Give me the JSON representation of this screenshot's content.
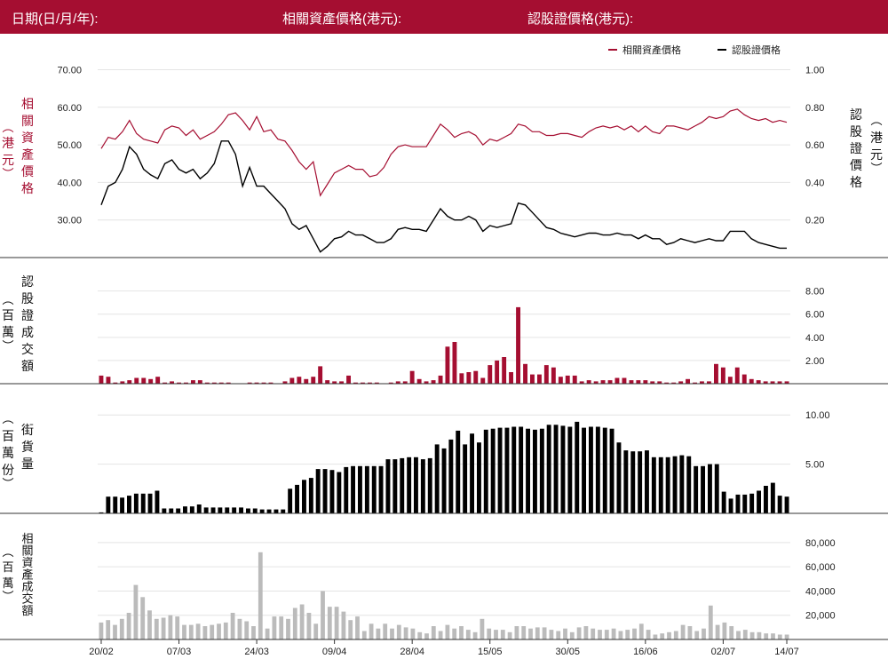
{
  "header": {
    "date_label": "日期(日/月/年):",
    "asset_price_label": "相關資產價格(港元):",
    "warrant_price_label": "認股證價格(港元):"
  },
  "colors": {
    "header_bg": "#a50e31",
    "asset": "#a50e31",
    "warrant": "#000000",
    "asset_turnover": "#bbbbbb",
    "grid": "#e4e4e4"
  },
  "chart_data": [
    {
      "type": "line",
      "legend": [
        "相關資產價格",
        "認股證價格"
      ],
      "legend_position": "top-right",
      "left_axis": {
        "label": "相關資產價格 (港元)",
        "ticks": [
          "30.00",
          "40.00",
          "50.00",
          "60.00",
          "70.00"
        ],
        "range": [
          20,
          72
        ]
      },
      "right_axis": {
        "label": "認股證價格 (港元)",
        "ticks": [
          "0.20",
          "0.40",
          "0.60",
          "0.80",
          "1.00"
        ],
        "range": [
          0,
          1.04
        ]
      },
      "grid": true,
      "series": [
        {
          "name": "相關資產價格",
          "axis": "left",
          "values": [
            49.0,
            52.0,
            51.5,
            53.5,
            56.5,
            53.0,
            51.5,
            51.0,
            50.5,
            54.0,
            55.0,
            54.5,
            52.5,
            54.0,
            51.5,
            52.5,
            53.5,
            55.5,
            58.0,
            58.5,
            56.5,
            54.0,
            57.5,
            53.5,
            54.0,
            51.5,
            51.0,
            48.5,
            45.5,
            43.5,
            45.5,
            36.5,
            39.5,
            42.5,
            43.5,
            44.5,
            43.5,
            43.5,
            41.5,
            42.0,
            44.0,
            47.5,
            49.5,
            50.0,
            49.5,
            49.5,
            49.5,
            52.5,
            55.5,
            54.0,
            52.0,
            53.0,
            53.5,
            52.5,
            50.0,
            51.5,
            51.0,
            52.0,
            53.0,
            55.5,
            55.0,
            53.5,
            53.5,
            52.5,
            52.5,
            53.0,
            53.0,
            52.5,
            52.0,
            53.5,
            54.5,
            55.0,
            54.5,
            55.0,
            54.0,
            55.0,
            53.5,
            55.0,
            53.5,
            53.0,
            55.0,
            55.0,
            54.5,
            54.0,
            55.0,
            56.0,
            57.5,
            57.0,
            57.5,
            59.0,
            59.5,
            58.0,
            57.0,
            56.5,
            57.0,
            56.0,
            56.5,
            56.0
          ]
        },
        {
          "name": "認股證價格",
          "axis": "right",
          "values": [
            0.28,
            0.38,
            0.4,
            0.47,
            0.59,
            0.55,
            0.47,
            0.44,
            0.42,
            0.5,
            0.52,
            0.47,
            0.45,
            0.47,
            0.42,
            0.45,
            0.5,
            0.62,
            0.62,
            0.55,
            0.38,
            0.48,
            0.38,
            0.38,
            0.34,
            0.3,
            0.26,
            0.18,
            0.15,
            0.17,
            0.1,
            0.03,
            0.06,
            0.1,
            0.11,
            0.14,
            0.12,
            0.12,
            0.1,
            0.08,
            0.08,
            0.1,
            0.15,
            0.16,
            0.15,
            0.15,
            0.14,
            0.2,
            0.26,
            0.22,
            0.2,
            0.2,
            0.22,
            0.2,
            0.14,
            0.17,
            0.16,
            0.17,
            0.18,
            0.29,
            0.28,
            0.24,
            0.2,
            0.16,
            0.15,
            0.13,
            0.12,
            0.11,
            0.12,
            0.13,
            0.13,
            0.12,
            0.12,
            0.13,
            0.12,
            0.12,
            0.1,
            0.12,
            0.1,
            0.1,
            0.07,
            0.08,
            0.1,
            0.09,
            0.08,
            0.09,
            0.1,
            0.09,
            0.09,
            0.14,
            0.14,
            0.14,
            0.1,
            0.08,
            0.07,
            0.06,
            0.05,
            0.05
          ]
        }
      ]
    },
    {
      "type": "bar",
      "ylabel": "認股證成交額 (百萬)",
      "ticks": [
        "2.00",
        "4.00",
        "6.00",
        "8.00"
      ],
      "range": [
        0,
        9.2
      ],
      "grid": true,
      "series": [
        {
          "name": "認股證成交額",
          "values": [
            0.7,
            0.6,
            0.1,
            0.2,
            0.3,
            0.5,
            0.5,
            0.4,
            0.6,
            0.1,
            0.2,
            0.1,
            0.1,
            0.3,
            0.3,
            0.1,
            0.1,
            0.1,
            0.1,
            0.0,
            0.0,
            0.1,
            0.1,
            0.1,
            0.1,
            0.0,
            0.2,
            0.5,
            0.6,
            0.4,
            0.6,
            1.5,
            0.3,
            0.2,
            0.2,
            0.7,
            0.1,
            0.1,
            0.1,
            0.1,
            0.0,
            0.1,
            0.2,
            0.2,
            1.1,
            0.4,
            0.2,
            0.3,
            0.7,
            3.2,
            3.6,
            0.9,
            1.0,
            1.1,
            0.5,
            1.6,
            2.0,
            2.3,
            1.0,
            6.6,
            1.7,
            0.8,
            0.8,
            1.6,
            1.4,
            0.6,
            0.7,
            0.7,
            0.2,
            0.3,
            0.2,
            0.3,
            0.3,
            0.5,
            0.5,
            0.3,
            0.3,
            0.3,
            0.2,
            0.2,
            0.1,
            0.1,
            0.2,
            0.4,
            0.1,
            0.2,
            0.2,
            1.7,
            1.4,
            0.6,
            1.4,
            0.8,
            0.4,
            0.3,
            0.2,
            0.2,
            0.2,
            0.2
          ]
        }
      ]
    },
    {
      "type": "bar",
      "ylabel": "街貨量 (百萬份)",
      "ticks": [
        "5.00",
        "10.00"
      ],
      "range": [
        0,
        11.1
      ],
      "grid": true,
      "series": [
        {
          "name": "街貨量",
          "values": [
            0.1,
            1.7,
            1.7,
            1.6,
            1.8,
            2.0,
            2.0,
            2.0,
            2.3,
            0.5,
            0.5,
            0.5,
            0.7,
            0.7,
            0.9,
            0.6,
            0.6,
            0.6,
            0.6,
            0.6,
            0.6,
            0.5,
            0.5,
            0.4,
            0.4,
            0.4,
            0.4,
            2.5,
            2.9,
            3.4,
            3.6,
            4.5,
            4.5,
            4.4,
            4.2,
            4.7,
            4.8,
            4.8,
            4.8,
            4.8,
            4.8,
            5.5,
            5.5,
            5.6,
            5.7,
            5.7,
            5.5,
            5.6,
            7.0,
            6.6,
            7.5,
            8.4,
            7.0,
            8.1,
            7.2,
            8.5,
            8.6,
            8.7,
            8.7,
            8.8,
            8.8,
            8.6,
            8.5,
            8.6,
            9.0,
            9.0,
            8.9,
            8.8,
            9.3,
            8.7,
            8.8,
            8.8,
            8.7,
            8.6,
            7.2,
            6.4,
            6.3,
            6.3,
            6.4,
            5.7,
            5.7,
            5.7,
            5.8,
            5.9,
            5.8,
            4.8,
            4.8,
            5.0,
            5.0,
            2.2,
            1.5,
            1.9,
            1.9,
            2.0,
            2.3,
            2.8,
            3.1,
            1.8,
            1.7
          ]
        }
      ]
    },
    {
      "type": "bar",
      "ylabel": "相關資產成交額 (百萬)",
      "ticks": [
        "20,000",
        "40,000",
        "60,000",
        "80,000"
      ],
      "range": [
        0,
        88000
      ],
      "grid": true,
      "series": [
        {
          "name": "相關資產成交額",
          "values": [
            14000,
            16000,
            12000,
            17000,
            22000,
            45000,
            35000,
            24000,
            17000,
            18000,
            20000,
            19000,
            12000,
            12000,
            13000,
            11000,
            12000,
            13000,
            14000,
            22000,
            17000,
            15000,
            11000,
            72000,
            9000,
            19000,
            19000,
            17000,
            26000,
            29000,
            22000,
            13000,
            40000,
            27000,
            27000,
            23000,
            16000,
            19000,
            7000,
            13000,
            9000,
            13000,
            9000,
            12000,
            10000,
            9000,
            6000,
            5000,
            11000,
            7000,
            12000,
            9000,
            11000,
            8000,
            6000,
            17000,
            9000,
            8000,
            8000,
            6000,
            11000,
            11000,
            9000,
            10000,
            10000,
            8000,
            7000,
            9000,
            6000,
            10000,
            11000,
            9000,
            8000,
            8000,
            9000,
            7000,
            8000,
            9000,
            13000,
            8000,
            4000,
            5000,
            6000,
            7000,
            12000,
            11000,
            7000,
            9000,
            28000,
            12000,
            14000,
            11000,
            7000,
            8000,
            6000,
            6000,
            5000,
            5000,
            4000,
            4000
          ]
        }
      ]
    }
  ],
  "x_axis": {
    "ticks": [
      "20/02",
      "07/03",
      "24/03",
      "09/04",
      "28/04",
      "15/05",
      "30/05",
      "16/06",
      "02/07",
      "14/07"
    ],
    "tick_indices": [
      0,
      11,
      22,
      33,
      44,
      55,
      66,
      77,
      88,
      97
    ]
  }
}
